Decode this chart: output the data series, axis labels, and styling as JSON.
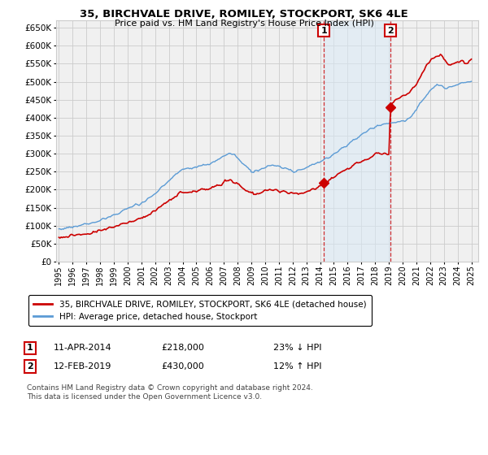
{
  "title": "35, BIRCHVALE DRIVE, ROMILEY, STOCKPORT, SK6 4LE",
  "subtitle": "Price paid vs. HM Land Registry's House Price Index (HPI)",
  "legend_line1": "35, BIRCHVALE DRIVE, ROMILEY, STOCKPORT, SK6 4LE (detached house)",
  "legend_line2": "HPI: Average price, detached house, Stockport",
  "annotation1_date": "11-APR-2014",
  "annotation1_price": "£218,000",
  "annotation1_pct": "23% ↓ HPI",
  "annotation2_date": "12-FEB-2019",
  "annotation2_price": "£430,000",
  "annotation2_pct": "12% ↑ HPI",
  "footer": "Contains HM Land Registry data © Crown copyright and database right 2024.\nThis data is licensed under the Open Government Licence v3.0.",
  "hpi_color": "#5b9bd5",
  "price_color": "#cc0000",
  "vline_color": "#cc0000",
  "shaded_color": "#daeaf7",
  "background_color": "#ffffff",
  "grid_color": "#cccccc",
  "plot_bg": "#f0f0f0",
  "ylim": [
    0,
    670000
  ],
  "yticks": [
    0,
    50000,
    100000,
    150000,
    200000,
    250000,
    300000,
    350000,
    400000,
    450000,
    500000,
    550000,
    600000,
    650000
  ],
  "purchase1_x": 2014.27,
  "purchase1_y": 218000,
  "purchase2_x": 2019.12,
  "purchase2_y": 430000,
  "vline1_x": 2014.27,
  "vline2_x": 2019.12,
  "shade_x1": 2014.27,
  "shade_x2": 2019.12,
  "xmin": 1994.8,
  "xmax": 2025.5,
  "xticks": [
    1995,
    1996,
    1997,
    1998,
    1999,
    2000,
    2001,
    2002,
    2003,
    2004,
    2005,
    2006,
    2007,
    2008,
    2009,
    2010,
    2011,
    2012,
    2013,
    2014,
    2015,
    2016,
    2017,
    2018,
    2019,
    2020,
    2021,
    2022,
    2023,
    2024,
    2025
  ]
}
